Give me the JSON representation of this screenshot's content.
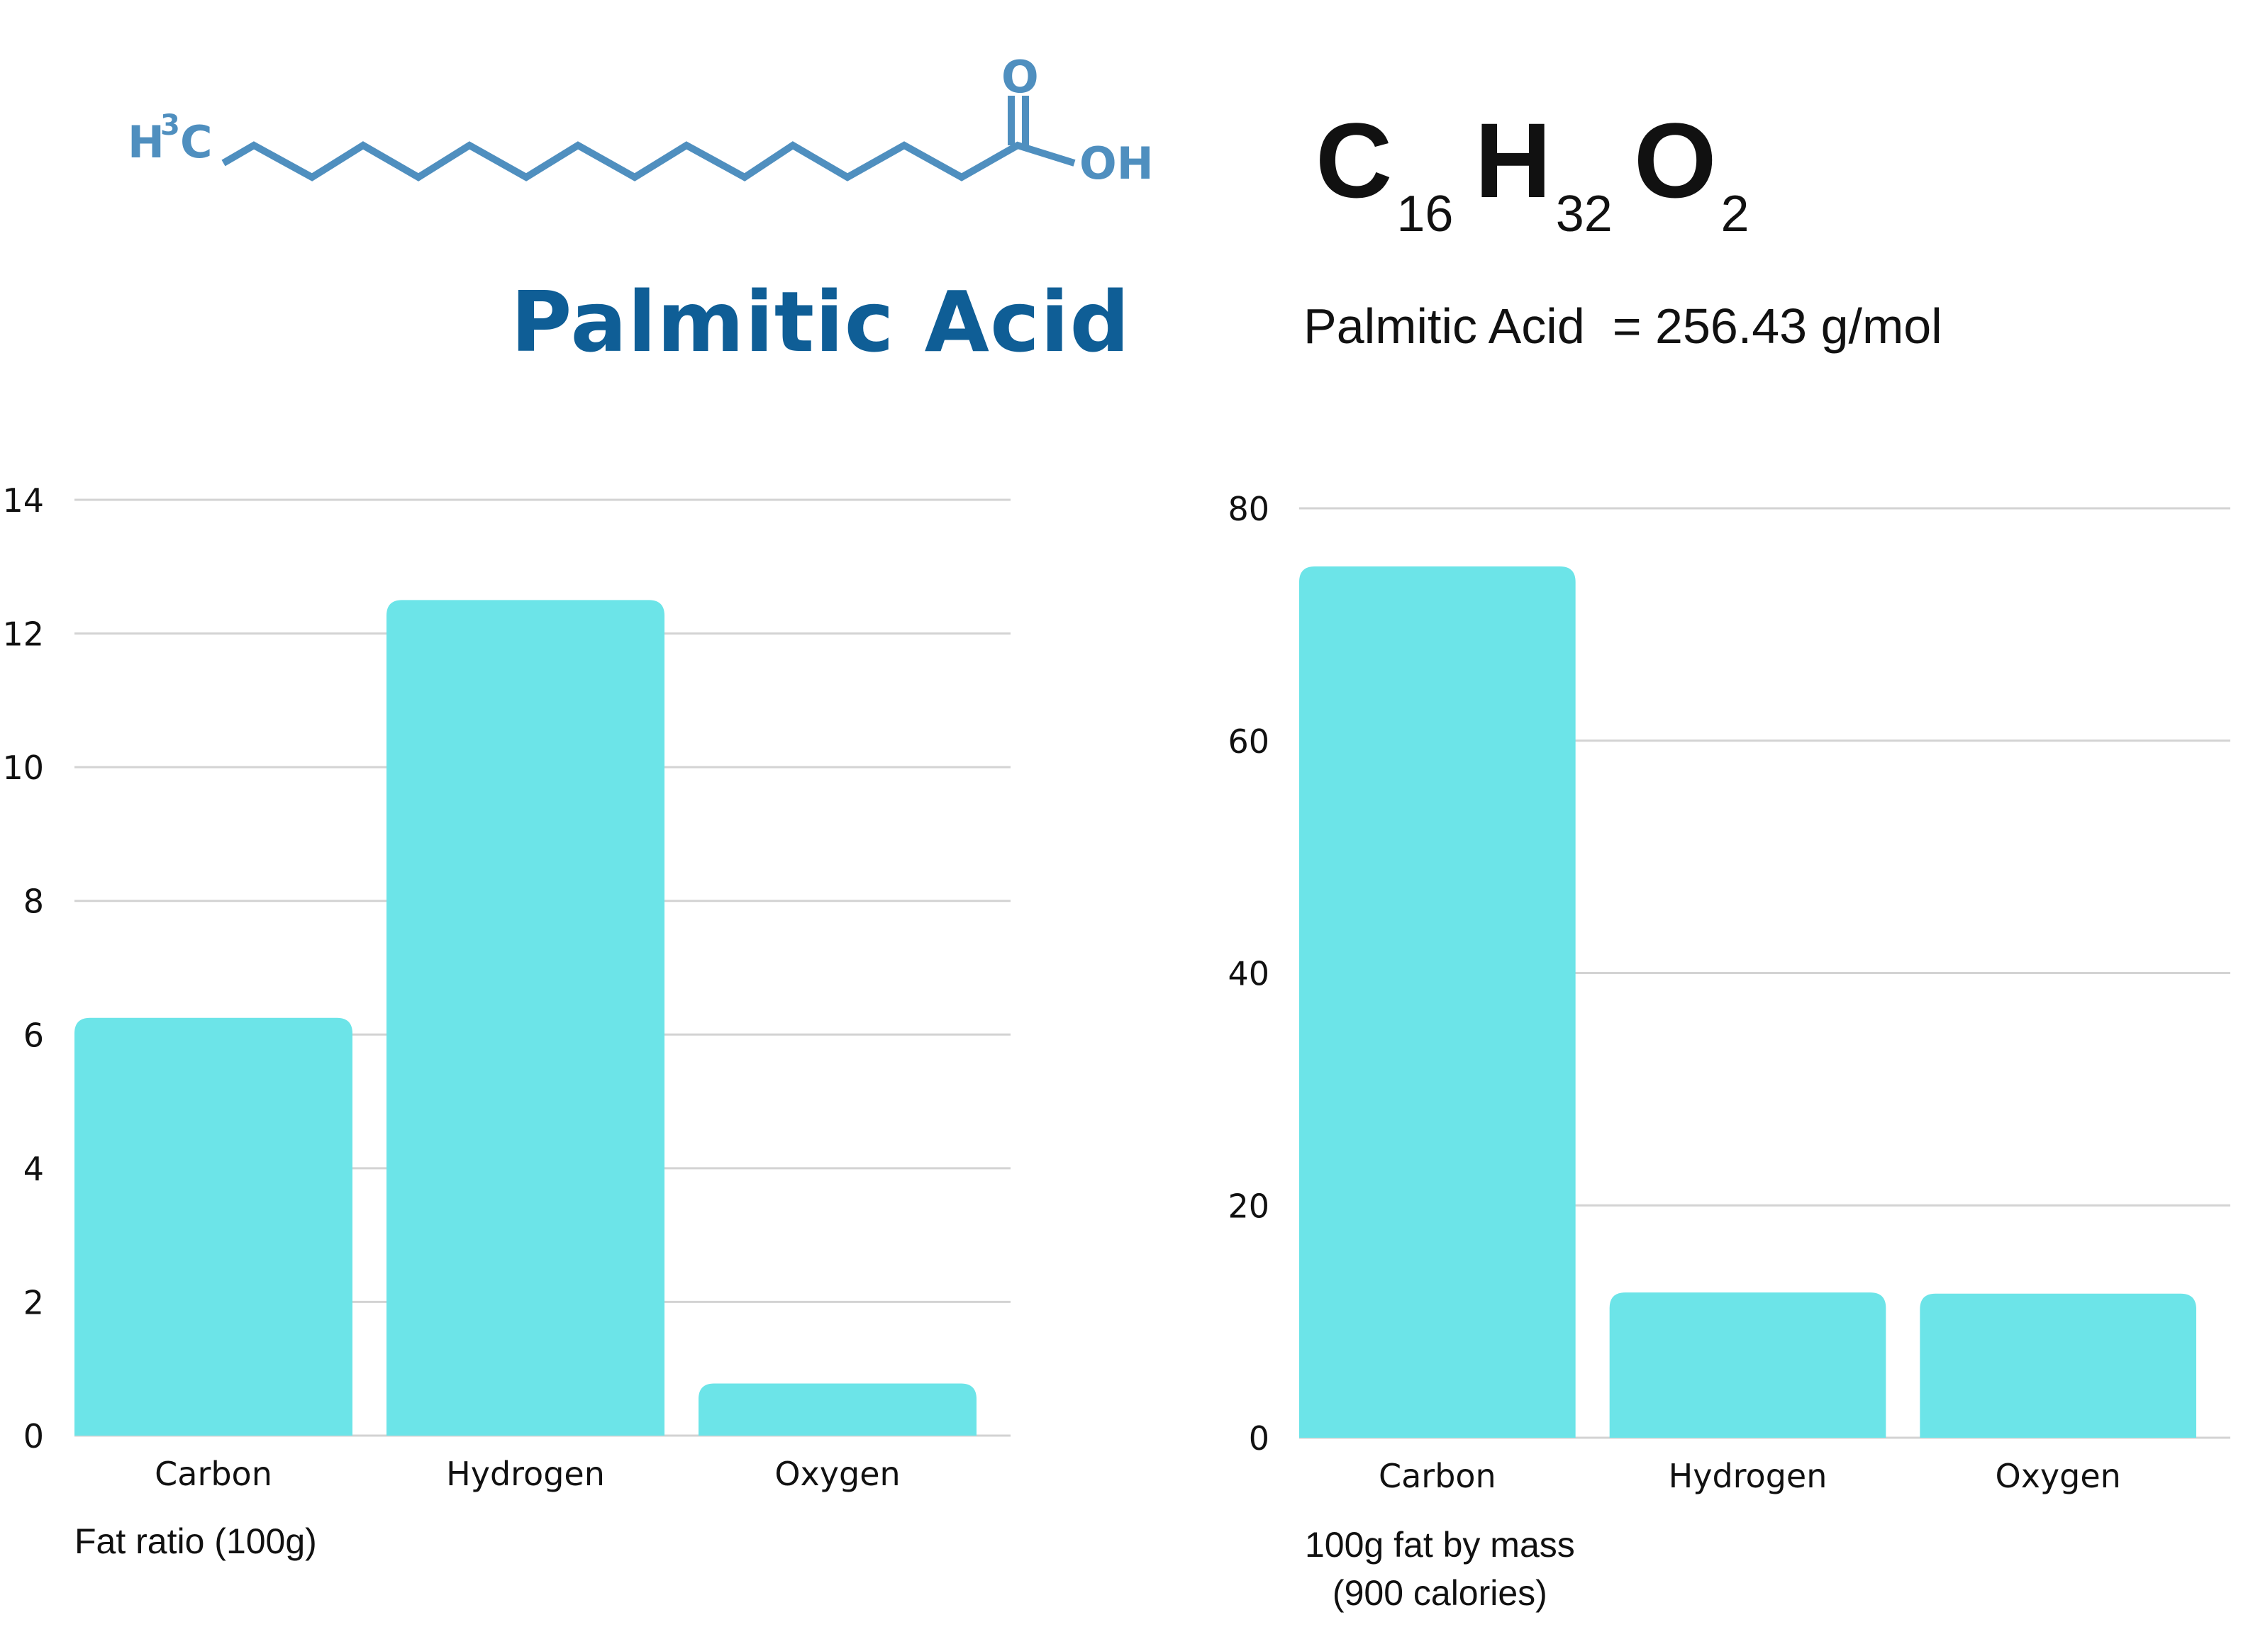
{
  "structure": {
    "left_group": "H",
    "left_sup": "3",
    "left_c": "C",
    "right_group": "OH",
    "carbonyl": "O"
  },
  "title": "Palmitic Acid",
  "formula": {
    "c": "C",
    "c_sub": "16",
    "h": "H",
    "h_sub": "32",
    "o": "O",
    "o_sub": "2"
  },
  "molar_mass": "Palmitic Acid  = 256.43 g/mol",
  "colors": {
    "bar": "#6ce4e8",
    "title": "#0f5e96",
    "structure": "#4f8fbf",
    "grid": "#d3d3d3"
  },
  "chart_data": [
    {
      "type": "bar",
      "categories": [
        "Carbon",
        "Hydrogen",
        "Oxygen"
      ],
      "values": [
        6.25,
        12.5,
        0.78
      ],
      "ylim": [
        0,
        14
      ],
      "yticks": [
        0,
        2,
        4,
        6,
        8,
        10,
        12,
        14
      ],
      "caption": [
        "Fat ratio (100g)"
      ],
      "grid": true
    },
    {
      "type": "bar",
      "categories": [
        "Carbon",
        "Hydrogen",
        "Oxygen"
      ],
      "values": [
        75,
        12.5,
        12.4
      ],
      "ylim": [
        0,
        80
      ],
      "yticks": [
        0,
        20,
        40,
        60,
        80
      ],
      "caption": [
        "100g fat by mass",
        "(900 calories)"
      ],
      "grid": true
    }
  ]
}
